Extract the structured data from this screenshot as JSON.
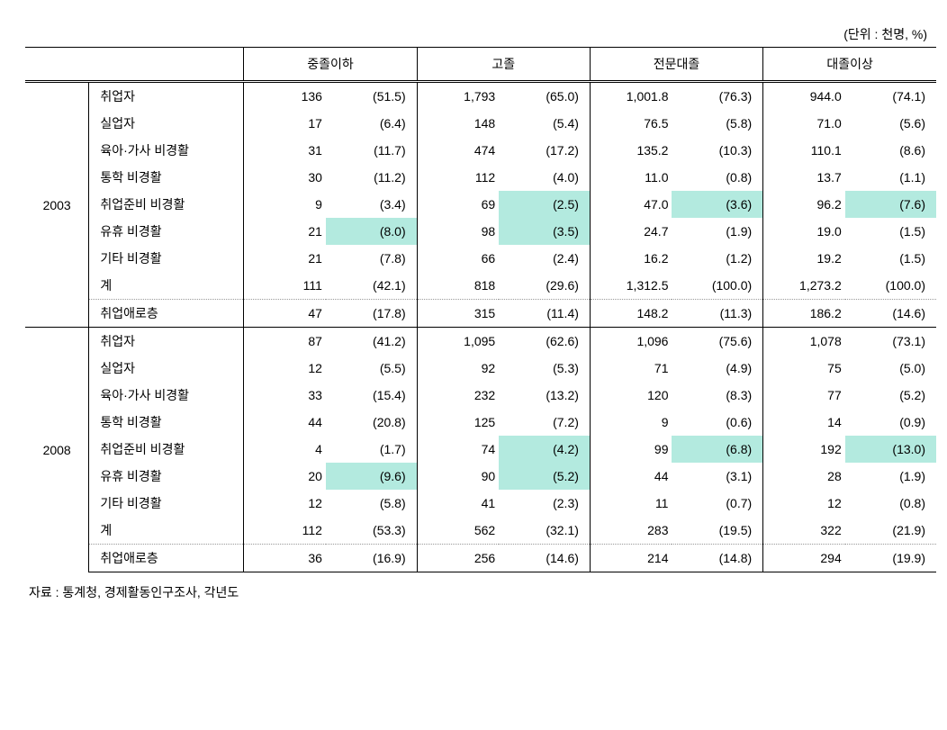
{
  "unit_label": "(단위 : 천명, %)",
  "source": "자료 : 통계청, 경제활동인구조사, 각년도",
  "columns": [
    "중졸이하",
    "고졸",
    "전문대졸",
    "대졸이상"
  ],
  "highlight_color": "#b3eadf",
  "groups": [
    {
      "year": "2003",
      "rows": [
        {
          "label": "취업자",
          "c1v": "136",
          "c1p": "(51.5)",
          "c2v": "1,793",
          "c2p": "(65.0)",
          "c3v": "1,001.8",
          "c3p": "(76.3)",
          "c4v": "944.0",
          "c4p": "(74.1)"
        },
        {
          "label": "실업자",
          "c1v": "17",
          "c1p": "(6.4)",
          "c2v": "148",
          "c2p": "(5.4)",
          "c3v": "76.5",
          "c3p": "(5.8)",
          "c4v": "71.0",
          "c4p": "(5.6)"
        },
        {
          "label": "육아·가사 비경활",
          "c1v": "31",
          "c1p": "(11.7)",
          "c2v": "474",
          "c2p": "(17.2)",
          "c3v": "135.2",
          "c3p": "(10.3)",
          "c4v": "110.1",
          "c4p": "(8.6)"
        },
        {
          "label": "통학 비경활",
          "c1v": "30",
          "c1p": "(11.2)",
          "c2v": "112",
          "c2p": "(4.0)",
          "c3v": "11.0",
          "c3p": "(0.8)",
          "c4v": "13.7",
          "c4p": "(1.1)"
        },
        {
          "label": "취업준비 비경활",
          "c1v": "9",
          "c1p": "(3.4)",
          "c2v": "69",
          "c2p": "(2.5)",
          "c2p_hl": true,
          "c3v": "47.0",
          "c3p": "(3.6)",
          "c3p_hl": true,
          "c4v": "96.2",
          "c4p": "(7.6)",
          "c4p_hl": true
        },
        {
          "label": "유휴 비경활",
          "c1v": "21",
          "c1p": "(8.0)",
          "c1p_hl": true,
          "c2v": "98",
          "c2p": "(3.5)",
          "c2p_hl": true,
          "c3v": "24.7",
          "c3p": "(1.9)",
          "c4v": "19.0",
          "c4p": "(1.5)"
        },
        {
          "label": "기타 비경활",
          "c1v": "21",
          "c1p": "(7.8)",
          "c2v": "66",
          "c2p": "(2.4)",
          "c3v": "16.2",
          "c3p": "(1.2)",
          "c4v": "19.2",
          "c4p": "(1.5)"
        },
        {
          "label": "계",
          "c1v": "111",
          "c1p": "(42.1)",
          "c2v": "818",
          "c2p": "(29.6)",
          "c3v": "1,312.5",
          "c3p": "(100.0)",
          "c4v": "1,273.2",
          "c4p": "(100.0)"
        },
        {
          "label": "취업애로층",
          "c1v": "47",
          "c1p": "(17.8)",
          "c2v": "315",
          "c2p": "(11.4)",
          "c3v": "148.2",
          "c3p": "(11.3)",
          "c4v": "186.2",
          "c4p": "(14.6)",
          "dotted_top": true
        }
      ]
    },
    {
      "year": "2008",
      "rows": [
        {
          "label": "취업자",
          "c1v": "87",
          "c1p": "(41.2)",
          "c2v": "1,095",
          "c2p": "(62.6)",
          "c3v": "1,096",
          "c3p": "(75.6)",
          "c4v": "1,078",
          "c4p": "(73.1)",
          "solid_top": true
        },
        {
          "label": "실업자",
          "c1v": "12",
          "c1p": "(5.5)",
          "c2v": "92",
          "c2p": "(5.3)",
          "c3v": "71",
          "c3p": "(4.9)",
          "c4v": "75",
          "c4p": "(5.0)"
        },
        {
          "label": "육아·가사 비경활",
          "c1v": "33",
          "c1p": "(15.4)",
          "c2v": "232",
          "c2p": "(13.2)",
          "c3v": "120",
          "c3p": "(8.3)",
          "c4v": "77",
          "c4p": "(5.2)"
        },
        {
          "label": "통학 비경활",
          "c1v": "44",
          "c1p": "(20.8)",
          "c2v": "125",
          "c2p": "(7.2)",
          "c3v": "9",
          "c3p": "(0.6)",
          "c4v": "14",
          "c4p": "(0.9)"
        },
        {
          "label": "취업준비 비경활",
          "c1v": "4",
          "c1p": "(1.7)",
          "c2v": "74",
          "c2p": "(4.2)",
          "c2p_hl": true,
          "c3v": "99",
          "c3p": "(6.8)",
          "c3p_hl": true,
          "c4v": "192",
          "c4p": "(13.0)",
          "c4p_hl": true
        },
        {
          "label": "유휴 비경활",
          "c1v": "20",
          "c1p": "(9.6)",
          "c1p_hl": true,
          "c2v": "90",
          "c2p": "(5.2)",
          "c2p_hl": true,
          "c3v": "44",
          "c3p": "(3.1)",
          "c4v": "28",
          "c4p": "(1.9)"
        },
        {
          "label": "기타 비경활",
          "c1v": "12",
          "c1p": "(5.8)",
          "c2v": "41",
          "c2p": "(2.3)",
          "c3v": "11",
          "c3p": "(0.7)",
          "c4v": "12",
          "c4p": "(0.8)"
        },
        {
          "label": "계",
          "c1v": "112",
          "c1p": "(53.3)",
          "c2v": "562",
          "c2p": "(32.1)",
          "c3v": "283",
          "c3p": "(19.5)",
          "c4v": "322",
          "c4p": "(21.9)"
        },
        {
          "label": "취업애로층",
          "c1v": "36",
          "c1p": "(16.9)",
          "c2v": "256",
          "c2p": "(14.6)",
          "c3v": "214",
          "c3p": "(14.8)",
          "c4v": "294",
          "c4p": "(19.9)",
          "dotted_top": true,
          "bottom_border": true
        }
      ]
    }
  ]
}
